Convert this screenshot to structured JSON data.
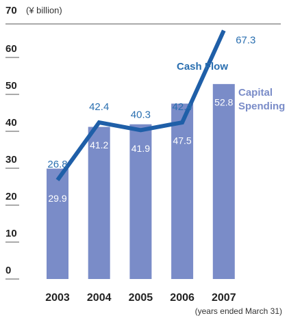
{
  "chart_data": {
    "type": "bar_line",
    "unit_label": "(¥ billion)",
    "footnote": "(years ended March 31)",
    "categories": [
      "2003",
      "2004",
      "2005",
      "2006",
      "2007"
    ],
    "series": [
      {
        "name": "Capital Spending",
        "type": "bar",
        "color": "#7a8cc8",
        "values": [
          29.9,
          41.2,
          41.9,
          47.5,
          52.8
        ]
      },
      {
        "name": "Cash Flow",
        "type": "line",
        "color": "#1f5fa8",
        "values": [
          26.8,
          42.4,
          40.3,
          42.4,
          67.3
        ]
      }
    ],
    "ylim": [
      0,
      70
    ],
    "yticks": [
      0,
      10,
      20,
      30,
      40,
      50,
      60,
      70
    ]
  }
}
